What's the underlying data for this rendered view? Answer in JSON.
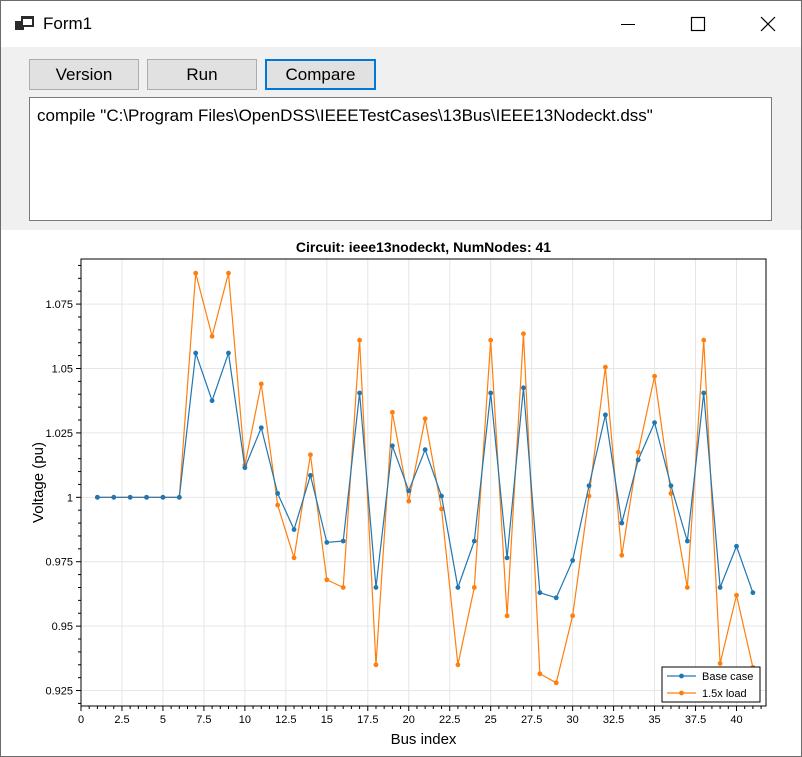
{
  "window": {
    "title": "Form1",
    "icon": "app-window-icon",
    "controls": [
      "minimize-icon",
      "maximize-icon",
      "close-icon"
    ]
  },
  "toolbar": {
    "version_label": "Version",
    "run_label": "Run",
    "compare_label": "Compare"
  },
  "command_box": {
    "value": "compile \"C:\\Program Files\\OpenDSS\\IEEETestCases\\13Bus\\IEEE13Nodeckt.dss\""
  },
  "chart_data": {
    "type": "line",
    "title": "Circuit: ieee13nodeckt, NumNodes: 41",
    "xlabel": "Bus index",
    "ylabel": "Voltage (pu)",
    "xlim": [
      0,
      41.8
    ],
    "ylim": [
      0.919,
      1.0925
    ],
    "xticks": [
      0,
      2.5,
      5,
      7.5,
      10,
      12.5,
      15,
      17.5,
      20,
      22.5,
      25,
      27.5,
      30,
      32.5,
      35,
      37.5,
      40
    ],
    "xtick_labels": [
      "0",
      "2.5",
      "5",
      "7.5",
      "10",
      "12.5",
      "15",
      "17.5",
      "20",
      "22.5",
      "25",
      "27.5",
      "30",
      "32.5",
      "35",
      "37.5",
      "40"
    ],
    "yticks": [
      0.925,
      0.95,
      0.975,
      1.0,
      1.025,
      1.05,
      1.075
    ],
    "ytick_labels": [
      "0.925",
      "0.95",
      "0.975",
      "1",
      "1.025",
      "1.05",
      "1.075"
    ],
    "grid": true,
    "legend_position": "bottom-right",
    "series": [
      {
        "name": "Base case",
        "color": "#1f77b4",
        "x": [
          1,
          2,
          3,
          4,
          5,
          6,
          7,
          8,
          9,
          10,
          11,
          12,
          13,
          14,
          15,
          16,
          17,
          18,
          19,
          20,
          21,
          22,
          23,
          24,
          25,
          26,
          27,
          28,
          29,
          30,
          31,
          32,
          33,
          34,
          35,
          36,
          37,
          38,
          39,
          40,
          41
        ],
        "values": [
          1.0,
          1.0,
          1.0,
          1.0,
          1.0,
          1.0,
          1.056,
          1.0375,
          1.056,
          1.0115,
          1.027,
          1.0015,
          0.9875,
          1.0085,
          0.9825,
          0.983,
          1.0405,
          0.965,
          1.02,
          1.0025,
          1.0185,
          1.0005,
          0.965,
          0.983,
          1.0405,
          0.9765,
          1.0425,
          0.963,
          0.961,
          0.9755,
          1.0045,
          1.032,
          0.99,
          1.0145,
          1.029,
          1.0045,
          0.983,
          1.0405,
          0.965,
          0.981,
          0.963
        ]
      },
      {
        "name": "1.5x load",
        "color": "#ff7f0e",
        "x": [
          1,
          2,
          3,
          4,
          5,
          6,
          7,
          8,
          9,
          10,
          11,
          12,
          13,
          14,
          15,
          16,
          17,
          18,
          19,
          20,
          21,
          22,
          23,
          24,
          25,
          26,
          27,
          28,
          29,
          30,
          31,
          32,
          33,
          34,
          35,
          36,
          37,
          38,
          39,
          40,
          41
        ],
        "values": [
          1.0,
          1.0,
          1.0,
          1.0,
          1.0,
          1.0,
          1.087,
          1.0625,
          1.087,
          1.0125,
          1.044,
          0.997,
          0.9765,
          1.0165,
          0.968,
          0.965,
          1.061,
          0.935,
          1.033,
          0.9985,
          1.0305,
          0.9955,
          0.935,
          0.965,
          1.061,
          0.954,
          1.0635,
          0.9315,
          0.928,
          0.954,
          1.0005,
          1.0505,
          0.9775,
          1.0175,
          1.047,
          1.0015,
          0.965,
          1.061,
          0.9355,
          0.962,
          0.934
        ]
      }
    ]
  }
}
